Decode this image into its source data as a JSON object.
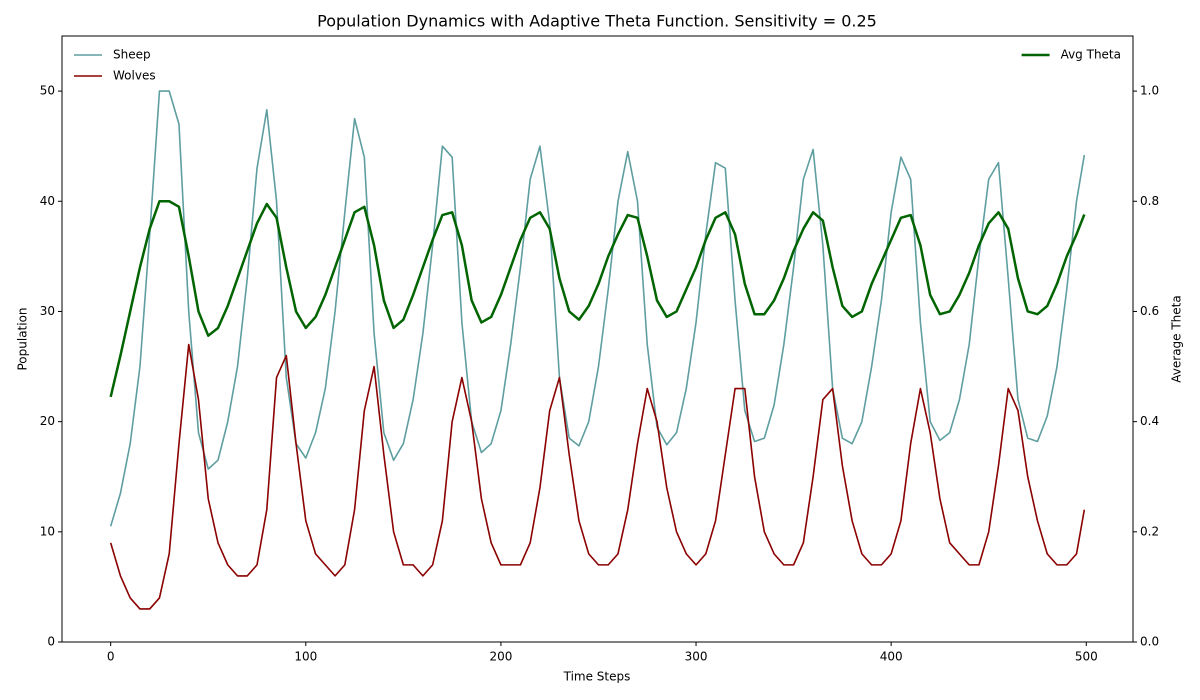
{
  "chart_data": {
    "type": "line",
    "title": "Population Dynamics with Adaptive Theta Function. Sensitivity = 0.25",
    "xlabel": "Time Steps",
    "ylabel": "Population",
    "y2label": "Average Theta",
    "x": [
      0,
      5,
      10,
      15,
      20,
      25,
      30,
      35,
      40,
      45,
      50,
      55,
      60,
      65,
      70,
      75,
      80,
      85,
      90,
      95,
      100,
      105,
      110,
      115,
      120,
      125,
      130,
      135,
      140,
      145,
      150,
      155,
      160,
      165,
      170,
      175,
      180,
      185,
      190,
      195,
      200,
      205,
      210,
      215,
      220,
      225,
      230,
      235,
      240,
      245,
      250,
      255,
      260,
      265,
      270,
      275,
      280,
      285,
      290,
      295,
      300,
      305,
      310,
      315,
      320,
      325,
      330,
      335,
      340,
      345,
      350,
      355,
      360,
      365,
      370,
      375,
      380,
      385,
      390,
      395,
      400,
      405,
      410,
      415,
      420,
      425,
      430,
      435,
      440,
      445,
      450,
      455,
      460,
      465,
      470,
      475,
      480,
      485,
      490,
      495,
      499
    ],
    "series": [
      {
        "name": "Sheep",
        "color": "#5f9ea0",
        "axis": "y",
        "values": [
          10.5,
          13.5,
          18,
          25,
          37,
          50,
          50,
          47,
          30,
          19,
          15.7,
          16.5,
          20,
          25,
          33,
          43,
          48.3,
          40,
          24,
          18,
          16.7,
          19,
          23,
          30,
          39,
          47.5,
          44,
          28,
          19,
          16.5,
          18,
          22,
          28,
          36,
          45,
          44,
          29,
          20,
          17.2,
          18,
          21,
          27,
          34,
          42,
          45,
          38,
          24,
          18.5,
          17.8,
          20,
          25,
          32,
          40,
          44.5,
          40,
          27,
          19.5,
          17.9,
          19,
          23,
          29,
          37,
          43.5,
          43,
          31,
          21,
          18.2,
          18.5,
          21.5,
          27,
          34,
          42,
          44.7,
          36,
          23,
          18.5,
          18,
          20,
          25,
          31,
          39,
          44,
          42,
          29,
          20,
          18.3,
          19,
          22,
          27,
          35,
          42,
          43.5,
          33,
          22,
          18.5,
          18.2,
          20.5,
          25,
          32,
          40,
          44.2
        ]
      },
      {
        "name": "Wolves",
        "color": "#8b0000",
        "axis": "y",
        "values": [
          9,
          6,
          4,
          3,
          3,
          4,
          8,
          18,
          27,
          22,
          13,
          9,
          7,
          6,
          6,
          7,
          12,
          24,
          26,
          18,
          11,
          8,
          7,
          6,
          7,
          12,
          21,
          25,
          17,
          10,
          7,
          7,
          6,
          7,
          11,
          20,
          24,
          20,
          13,
          9,
          7,
          7,
          7,
          9,
          14,
          21,
          24,
          17,
          11,
          8,
          7,
          7,
          8,
          12,
          18,
          23,
          20,
          14,
          10,
          8,
          7,
          8,
          11,
          17,
          23,
          23,
          15,
          10,
          8,
          7,
          7,
          9,
          15,
          22,
          23,
          16,
          11,
          8,
          7,
          7,
          8,
          11,
          18,
          23,
          19,
          13,
          9,
          8,
          7,
          7,
          10,
          16,
          23,
          21,
          15,
          11,
          8,
          7,
          7,
          8,
          12
        ]
      },
      {
        "name": "Avg Theta",
        "color": "#006400",
        "axis": "y2",
        "values": [
          0.445,
          0.52,
          0.6,
          0.68,
          0.75,
          0.8,
          0.8,
          0.79,
          0.7,
          0.6,
          0.556,
          0.57,
          0.61,
          0.66,
          0.71,
          0.76,
          0.795,
          0.77,
          0.68,
          0.6,
          0.57,
          0.59,
          0.63,
          0.68,
          0.73,
          0.78,
          0.79,
          0.72,
          0.62,
          0.57,
          0.585,
          0.63,
          0.68,
          0.73,
          0.775,
          0.78,
          0.72,
          0.62,
          0.58,
          0.59,
          0.63,
          0.68,
          0.73,
          0.77,
          0.78,
          0.75,
          0.66,
          0.6,
          0.585,
          0.61,
          0.65,
          0.7,
          0.74,
          0.775,
          0.77,
          0.7,
          0.62,
          0.59,
          0.6,
          0.64,
          0.68,
          0.73,
          0.77,
          0.78,
          0.74,
          0.65,
          0.595,
          0.595,
          0.62,
          0.66,
          0.71,
          0.75,
          0.78,
          0.765,
          0.68,
          0.61,
          0.59,
          0.6,
          0.65,
          0.69,
          0.73,
          0.77,
          0.775,
          0.72,
          0.63,
          0.595,
          0.6,
          0.63,
          0.67,
          0.72,
          0.76,
          0.78,
          0.75,
          0.66,
          0.6,
          0.595,
          0.61,
          0.65,
          0.7,
          0.74,
          0.776
        ]
      }
    ],
    "xlim": [
      -24.95,
      523.95
    ],
    "xticks": [
      0,
      100,
      200,
      300,
      400,
      500
    ],
    "ylim": [
      0,
      55
    ],
    "yticks": [
      0,
      10,
      20,
      30,
      40,
      50
    ],
    "y2lim": [
      0,
      1.1
    ],
    "y2ticks": [
      {
        "value": 0,
        "label": "0.0"
      },
      0.2,
      0.4,
      0.6,
      0.8,
      {
        "value": 1,
        "label": "1.0"
      }
    ],
    "legend": "upper left",
    "legend2": "upper right"
  }
}
